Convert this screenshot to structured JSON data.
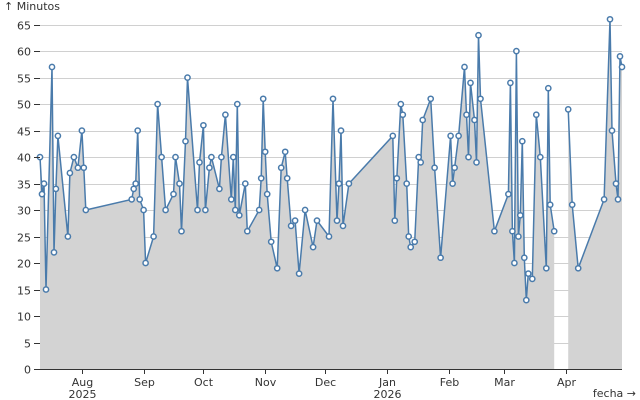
{
  "chart_data": {
    "type": "area",
    "ylabel": "↑ Minutos",
    "xlabel": "fecha →",
    "ylim": [
      0,
      67
    ],
    "y_ticks": [
      0,
      5,
      10,
      15,
      20,
      25,
      30,
      35,
      40,
      45,
      50,
      55,
      60,
      65
    ],
    "x_range": [
      "2025-07-11",
      "2026-04-29"
    ],
    "x_ticks": [
      {
        "date": "2025-08-01",
        "label": "Aug",
        "sublabel": "2025"
      },
      {
        "date": "2025-09-01",
        "label": "Sep",
        "sublabel": ""
      },
      {
        "date": "2025-10-01",
        "label": "Oct",
        "sublabel": ""
      },
      {
        "date": "2025-11-01",
        "label": "Nov",
        "sublabel": ""
      },
      {
        "date": "2025-12-01",
        "label": "Dec",
        "sublabel": ""
      },
      {
        "date": "2026-01-01",
        "label": "Jan",
        "sublabel": "2026"
      },
      {
        "date": "2026-02-01",
        "label": "Feb",
        "sublabel": ""
      },
      {
        "date": "2026-03-01",
        "label": "Mar",
        "sublabel": ""
      },
      {
        "date": "2026-04-01",
        "label": "Apr",
        "sublabel": ""
      }
    ],
    "grid": true,
    "colors": {
      "line": "#4a7bab",
      "area": "#d3d3d3",
      "point_fill": "#ffffff"
    },
    "series": [
      {
        "points": [
          [
            "2025-07-11",
            40
          ],
          [
            "2025-07-12",
            33
          ],
          [
            "2025-07-13",
            35
          ],
          [
            "2025-07-14",
            15
          ],
          [
            "2025-07-17",
            57
          ],
          [
            "2025-07-18",
            22
          ],
          [
            "2025-07-19",
            34
          ],
          [
            "2025-07-20",
            44
          ],
          [
            "2025-07-25",
            25
          ],
          [
            "2025-07-26",
            37
          ],
          [
            "2025-07-28",
            40
          ],
          [
            "2025-07-30",
            38
          ],
          [
            "2025-08-01",
            45
          ],
          [
            "2025-08-02",
            38
          ],
          [
            "2025-08-03",
            30
          ],
          [
            "2025-08-26",
            32
          ],
          [
            "2025-08-27",
            34
          ],
          [
            "2025-08-28",
            35
          ],
          [
            "2025-08-29",
            45
          ],
          [
            "2025-08-30",
            32
          ],
          [
            "2025-09-01",
            30
          ],
          [
            "2025-09-02",
            20
          ],
          [
            "2025-09-06",
            25
          ],
          [
            "2025-09-08",
            50
          ],
          [
            "2025-09-10",
            40
          ],
          [
            "2025-09-12",
            30
          ],
          [
            "2025-09-16",
            33
          ],
          [
            "2025-09-17",
            40
          ],
          [
            "2025-09-19",
            35
          ],
          [
            "2025-09-20",
            26
          ],
          [
            "2025-09-22",
            43
          ],
          [
            "2025-09-23",
            55
          ],
          [
            "2025-09-28",
            30
          ],
          [
            "2025-09-29",
            39
          ],
          [
            "2025-10-01",
            46
          ],
          [
            "2025-10-02",
            30
          ],
          [
            "2025-10-04",
            38
          ],
          [
            "2025-10-05",
            40
          ],
          [
            "2025-10-09",
            34
          ],
          [
            "2025-10-10",
            40
          ],
          [
            "2025-10-12",
            48
          ],
          [
            "2025-10-15",
            32
          ],
          [
            "2025-10-16",
            40
          ],
          [
            "2025-10-17",
            30
          ],
          [
            "2025-10-18",
            50
          ],
          [
            "2025-10-19",
            29
          ],
          [
            "2025-10-22",
            35
          ],
          [
            "2025-10-23",
            26
          ],
          [
            "2025-10-29",
            30
          ],
          [
            "2025-10-30",
            36
          ],
          [
            "2025-10-31",
            51
          ],
          [
            "2025-11-01",
            41
          ],
          [
            "2025-11-02",
            33
          ],
          [
            "2025-11-04",
            24
          ],
          [
            "2025-11-07",
            19
          ],
          [
            "2025-11-09",
            38
          ],
          [
            "2025-11-11",
            41
          ],
          [
            "2025-11-12",
            36
          ],
          [
            "2025-11-14",
            27
          ],
          [
            "2025-11-16",
            28
          ],
          [
            "2025-11-18",
            18
          ],
          [
            "2025-11-21",
            30
          ],
          [
            "2025-11-25",
            23
          ],
          [
            "2025-11-27",
            28
          ],
          [
            "2025-12-03",
            25
          ],
          [
            "2025-12-05",
            51
          ],
          [
            "2025-12-07",
            28
          ],
          [
            "2025-12-08",
            35
          ],
          [
            "2025-12-09",
            45
          ],
          [
            "2025-12-10",
            27
          ],
          [
            "2025-12-13",
            35
          ],
          [
            "2026-01-04",
            44
          ],
          [
            "2026-01-05",
            28
          ],
          [
            "2026-01-06",
            36
          ],
          [
            "2026-01-08",
            50
          ],
          [
            "2026-01-09",
            48
          ],
          [
            "2026-01-11",
            35
          ],
          [
            "2026-01-12",
            25
          ],
          [
            "2026-01-13",
            23
          ],
          [
            "2026-01-15",
            24
          ],
          [
            "2026-01-17",
            40
          ],
          [
            "2026-01-18",
            39
          ],
          [
            "2026-01-19",
            47
          ],
          [
            "2026-01-23",
            51
          ],
          [
            "2026-01-25",
            38
          ],
          [
            "2026-01-28",
            21
          ],
          [
            "2026-02-02",
            44
          ],
          [
            "2026-02-03",
            35
          ],
          [
            "2026-02-04",
            38
          ],
          [
            "2026-02-06",
            44
          ],
          [
            "2026-02-09",
            57
          ],
          [
            "2026-02-10",
            48
          ],
          [
            "2026-02-11",
            40
          ],
          [
            "2026-02-12",
            54
          ],
          [
            "2026-02-14",
            47
          ],
          [
            "2026-02-15",
            39
          ],
          [
            "2026-02-16",
            63
          ],
          [
            "2026-02-17",
            51
          ],
          [
            "2026-02-24",
            26
          ],
          [
            "2026-03-03",
            33
          ],
          [
            "2026-03-04",
            54
          ],
          [
            "2026-03-05",
            26
          ],
          [
            "2026-03-06",
            20
          ],
          [
            "2026-03-07",
            60
          ],
          [
            "2026-03-08",
            25
          ],
          [
            "2026-03-09",
            29
          ],
          [
            "2026-03-10",
            43
          ],
          [
            "2026-03-11",
            21
          ],
          [
            "2026-03-12",
            13
          ],
          [
            "2026-03-13",
            18
          ],
          [
            "2026-03-15",
            17
          ],
          [
            "2026-03-17",
            48
          ],
          [
            "2026-03-19",
            40
          ],
          [
            "2026-03-22",
            19
          ],
          [
            "2026-03-23",
            53
          ],
          [
            "2026-03-24",
            31
          ],
          [
            "2026-03-26",
            26
          ],
          null,
          [
            "2026-04-02",
            49
          ],
          [
            "2026-04-04",
            31
          ],
          [
            "2026-04-07",
            19
          ],
          [
            "2026-04-20",
            32
          ],
          [
            "2026-04-23",
            66
          ],
          [
            "2026-04-24",
            45
          ],
          [
            "2026-04-26",
            35
          ],
          [
            "2026-04-27",
            32
          ],
          [
            "2026-04-28",
            59
          ],
          [
            "2026-04-29",
            57
          ]
        ]
      }
    ]
  }
}
